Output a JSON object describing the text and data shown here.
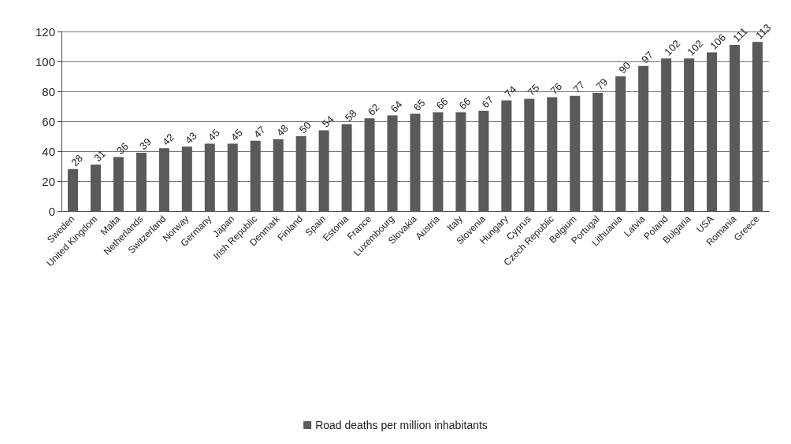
{
  "chart_data": {
    "type": "bar",
    "categories": [
      "Sweden",
      "United Kingdom",
      "Malta",
      "Netherlands",
      "Switzerland",
      "Norway",
      "Germany",
      "Japan",
      "Irish Republic",
      "Denmark",
      "Finland",
      "Spain",
      "Estonia",
      "France",
      "Luxembourg",
      "Slovakia",
      "Austria",
      "Italy",
      "Slovenia",
      "Hungary",
      "Cyprus",
      "Czech Republic",
      "Belgium",
      "Portugal",
      "Lithuania",
      "Latvia",
      "Poland",
      "Bulgaria",
      "USA",
      "Romania",
      "Greece"
    ],
    "series": [
      {
        "name": "Road deaths per million inhabitants",
        "color": "#5a5a5a",
        "values": [
          28,
          31,
          36,
          39,
          42,
          43,
          45,
          45,
          47,
          48,
          50,
          54,
          58,
          62,
          64,
          65,
          66,
          66,
          67,
          74,
          75,
          76,
          77,
          79,
          90,
          97,
          102,
          102,
          106,
          111,
          113
        ]
      }
    ],
    "ylim": [
      0,
      120
    ],
    "yticks": [
      0,
      20,
      40,
      60,
      80,
      100,
      120
    ],
    "grid": "y",
    "legend": "bottom",
    "data_labels": true
  }
}
